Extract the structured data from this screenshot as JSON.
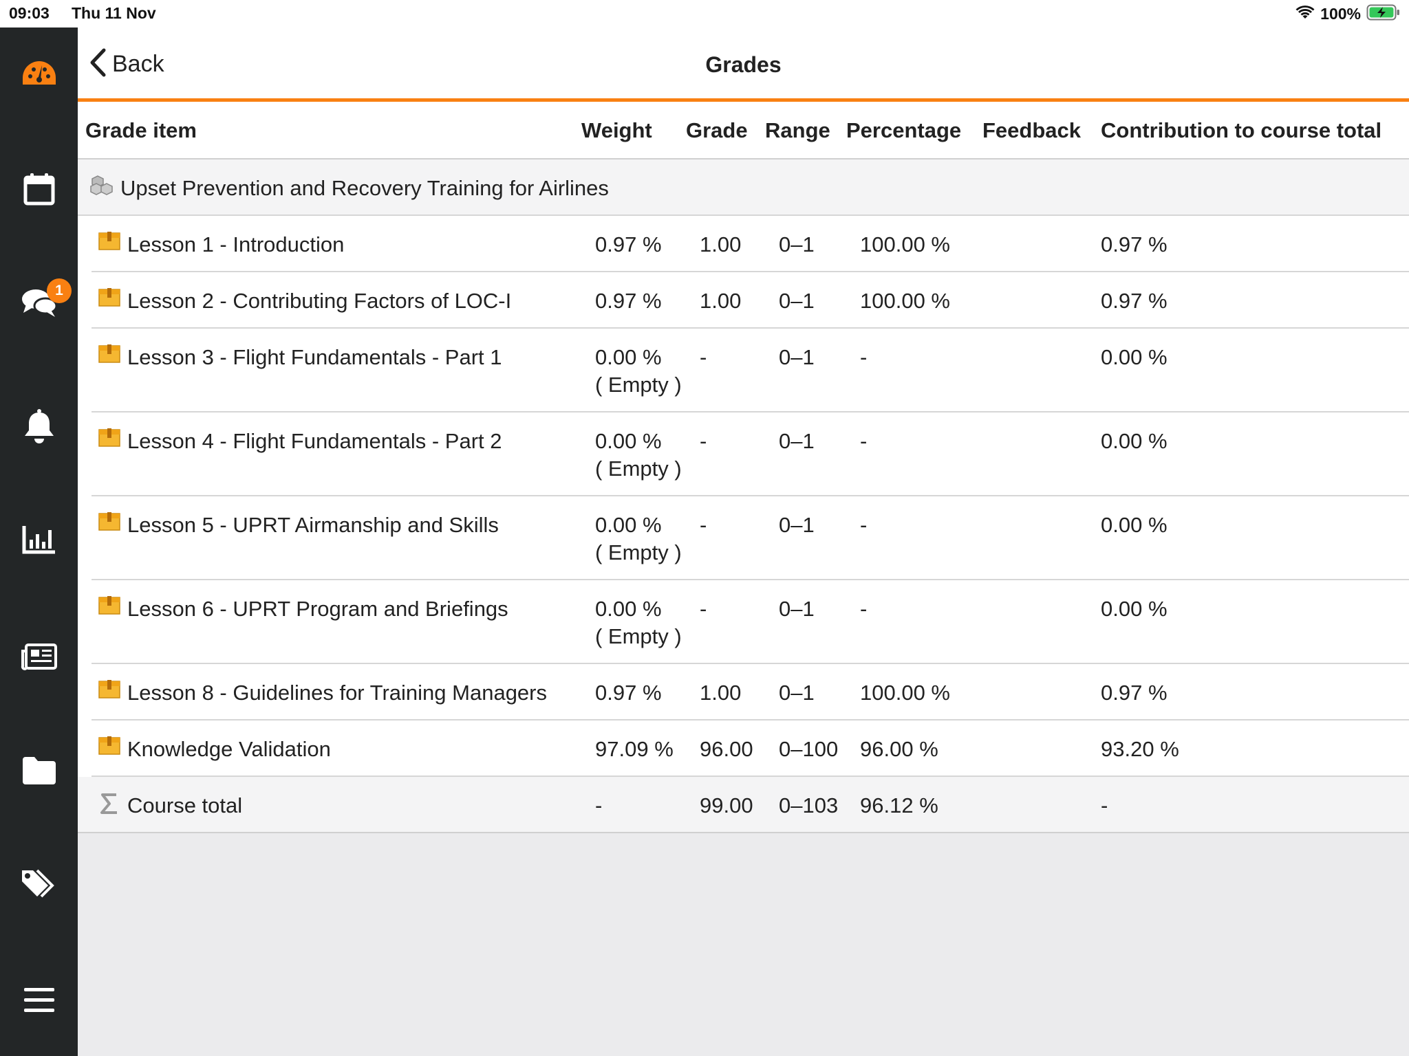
{
  "status_bar": {
    "time": "09:03",
    "date": "Thu 11 Nov",
    "battery": "100%"
  },
  "sidebar": {
    "items": [
      {
        "name": "dashboard",
        "icon": "gauge-icon",
        "active": true
      },
      {
        "name": "calendar",
        "icon": "calendar-icon"
      },
      {
        "name": "messages",
        "icon": "chat-bubbles-icon",
        "badge": "1"
      },
      {
        "name": "notifications",
        "icon": "bell-icon"
      },
      {
        "name": "grades",
        "icon": "bar-chart-icon"
      },
      {
        "name": "news",
        "icon": "newspaper-icon"
      },
      {
        "name": "files",
        "icon": "folder-icon"
      },
      {
        "name": "tags",
        "icon": "tags-icon"
      },
      {
        "name": "more",
        "icon": "hamburger-menu-icon"
      }
    ],
    "accent": "#f98012"
  },
  "header": {
    "back_label": "Back",
    "title": "Grades"
  },
  "table": {
    "columns": [
      "Grade item",
      "Weight",
      "Grade",
      "Range",
      "Percentage",
      "Feedback",
      "Contribution to course total"
    ],
    "category": "Upset Prevention and Recovery Training for Airlines",
    "rows": [
      {
        "item": "Lesson 1 - Introduction",
        "weight": "0.97 %",
        "weight_note": "",
        "grade": "1.00",
        "range": "0–1",
        "percentage": "100.00 %",
        "feedback": "",
        "contribution": "0.97 %"
      },
      {
        "item": "Lesson 2 - Contributing Factors of LOC-I",
        "weight": "0.97 %",
        "weight_note": "",
        "grade": "1.00",
        "range": "0–1",
        "percentage": "100.00 %",
        "feedback": "",
        "contribution": "0.97 %"
      },
      {
        "item": "Lesson 3 - Flight Fundamentals - Part 1",
        "weight": "0.00 %",
        "weight_note": "( Empty )",
        "grade": "-",
        "range": "0–1",
        "percentage": "-",
        "feedback": "",
        "contribution": "0.00 %"
      },
      {
        "item": "Lesson 4 - Flight Fundamentals - Part 2",
        "weight": "0.00 %",
        "weight_note": "( Empty )",
        "grade": "-",
        "range": "0–1",
        "percentage": "-",
        "feedback": "",
        "contribution": "0.00 %"
      },
      {
        "item": "Lesson 5 - UPRT Airmanship and Skills",
        "weight": "0.00 %",
        "weight_note": "( Empty )",
        "grade": "-",
        "range": "0–1",
        "percentage": "-",
        "feedback": "",
        "contribution": "0.00 %"
      },
      {
        "item": "Lesson 6 - UPRT Program and Briefings",
        "weight": "0.00 %",
        "weight_note": "( Empty )",
        "grade": "-",
        "range": "0–1",
        "percentage": "-",
        "feedback": "",
        "contribution": "0.00 %"
      },
      {
        "item": "Lesson 8 - Guidelines for Training Managers",
        "weight": "0.97 %",
        "weight_note": "",
        "grade": "1.00",
        "range": "0–1",
        "percentage": "100.00 %",
        "feedback": "",
        "contribution": "0.97 %"
      },
      {
        "item": "Knowledge Validation",
        "weight": "97.09 %",
        "weight_note": "",
        "grade": "96.00",
        "range": "0–100",
        "percentage": "96.00 %",
        "feedback": "",
        "contribution": "93.20 %"
      }
    ],
    "total": {
      "item": "Course total",
      "weight": "-",
      "grade": "99.00",
      "range": "0–103",
      "percentage": "96.12 %",
      "feedback": "",
      "contribution": "-"
    }
  }
}
